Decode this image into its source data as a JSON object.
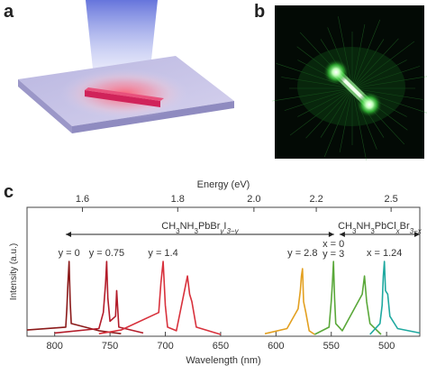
{
  "panels": {
    "a": "a",
    "b": "b",
    "c": "c"
  },
  "chart_data": {
    "type": "line",
    "title": "",
    "xlabel": "Wavelength (nm)",
    "ylabel": "Intensity (a.u.)",
    "x_axis_reversed": true,
    "xlim": [
      825,
      470
    ],
    "xticks": [
      800,
      750,
      700,
      650,
      600,
      550,
      500
    ],
    "top_axis": {
      "label": "Energy (eV)",
      "unit": "eV",
      "ticks": [
        1.6,
        1.8,
        2.0,
        2.2,
        2.5
      ]
    },
    "grid": false,
    "legend": "none",
    "groups": [
      {
        "formula": "CH3NH3PbBryI3−y",
        "parts": [
          "CH",
          "3",
          "NH",
          "3",
          "PbBr",
          "y",
          "I",
          "3−y"
        ],
        "range_nm": [
          790,
          545
        ]
      },
      {
        "formula": "CH3NH3PbClxBr3−x",
        "parts": [
          "CH",
          "3",
          "NH",
          "3",
          "PbCl",
          "x",
          "Br",
          "3−x"
        ],
        "range_nm": [
          545,
          470
        ]
      }
    ],
    "peaks": [
      {
        "label": "y = 0",
        "peak_nm": 787,
        "color": "#8b1a1a"
      },
      {
        "label": "y = 0.75",
        "peak_nm": 753,
        "color": "#b31c2a"
      },
      {
        "label": "y = 1.4",
        "peak_nm": 702,
        "color": "#d8313c"
      },
      {
        "label": "y = 2.8",
        "peak_nm": 576,
        "color": "#e3a020"
      },
      {
        "label": "x = 0",
        "label2": "y = 3",
        "peak_nm": 548,
        "color": "#5aa83a"
      },
      {
        "label": "x = 1.24",
        "peak_nm": 502,
        "color": "#1fa9a0"
      }
    ],
    "series": [
      {
        "color": "#8b1a1a",
        "x": [
          825,
          790,
          789,
          788,
          787,
          786,
          785,
          760,
          740
        ],
        "values": [
          0.06,
          0.1,
          0.35,
          0.7,
          1.0,
          0.45,
          0.15,
          0.05,
          0.01
        ]
      },
      {
        "color": "#b31c2a",
        "x": [
          800,
          760,
          756,
          754,
          753,
          752,
          750,
          745,
          744,
          742,
          720
        ],
        "values": [
          0.02,
          0.08,
          0.3,
          0.7,
          1.0,
          0.5,
          0.18,
          0.25,
          0.6,
          0.1,
          0.02
        ]
      },
      {
        "color": "#d8313c",
        "x": [
          760,
          740,
          706,
          704,
          702,
          700,
          698,
          690,
          680,
          678,
          676,
          672,
          650
        ],
        "values": [
          0.01,
          0.06,
          0.3,
          0.7,
          1.0,
          0.4,
          0.1,
          0.05,
          0.8,
          0.55,
          0.45,
          0.1,
          0.0
        ]
      },
      {
        "color": "#e3a020",
        "x": [
          610,
          590,
          580,
          578,
          577,
          576,
          575,
          573,
          570,
          565
        ],
        "values": [
          0.01,
          0.08,
          0.35,
          0.6,
          0.8,
          0.9,
          0.45,
          0.3,
          0.05,
          0.0
        ]
      },
      {
        "color": "#5aa83a",
        "x": [
          565,
          552,
          550,
          549,
          548,
          547,
          546,
          540,
          522,
          520,
          518,
          515,
          505
        ],
        "values": [
          0.0,
          0.1,
          0.45,
          0.7,
          1.0,
          0.5,
          0.15,
          0.05,
          0.55,
          0.8,
          0.45,
          0.15,
          0.0
        ]
      },
      {
        "color": "#1fa9a0",
        "x": [
          515,
          506,
          504,
          503,
          502,
          501,
          499,
          497,
          490,
          470
        ],
        "values": [
          0.0,
          0.15,
          0.4,
          0.8,
          1.0,
          0.6,
          0.55,
          0.25,
          0.08,
          0.02
        ]
      }
    ]
  }
}
